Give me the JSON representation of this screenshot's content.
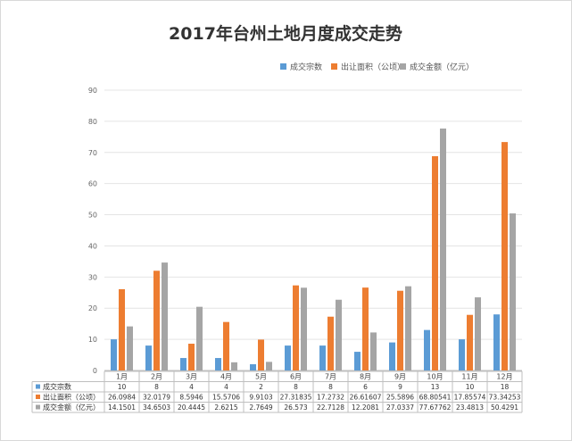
{
  "chart_data": {
    "type": "bar",
    "title": "2017年台州土地月度成交走势",
    "categories": [
      "1月",
      "2月",
      "3月",
      "4月",
      "5月",
      "6月",
      "7月",
      "8月",
      "9月",
      "10月",
      "11月",
      "12月"
    ],
    "series": [
      {
        "name": "成交宗数",
        "color": "#5b9bd5",
        "values": [
          10,
          8,
          4,
          4,
          2,
          8,
          8,
          6,
          9,
          13,
          10,
          18
        ],
        "labels": [
          "10",
          "8",
          "4",
          "4",
          "2",
          "8",
          "8",
          "6",
          "9",
          "13",
          "10",
          "18"
        ]
      },
      {
        "name": "出让面积（公顷）",
        "color": "#ed7d31",
        "values": [
          26.0984,
          32.0179,
          8.5946,
          15.5706,
          9.9103,
          27.31835,
          17.2732,
          26.61607,
          25.5896,
          68.80541,
          17.85574,
          73.34253
        ],
        "labels": [
          "26.0984",
          "32.0179",
          "8.5946",
          "15.5706",
          "9.9103",
          "27.31835",
          "17.2732",
          "26.61607",
          "25.5896",
          "68.80541",
          "17.85574",
          "73.34253"
        ]
      },
      {
        "name": "成交金额（亿元）",
        "color": "#a5a5a5",
        "values": [
          14.1501,
          34.6503,
          20.4445,
          2.6215,
          2.7649,
          26.573,
          22.7128,
          12.2081,
          27.0337,
          77.67762,
          23.4813,
          50.4291
        ],
        "labels": [
          "14.1501",
          "34.6503",
          "20.4445",
          "2.6215",
          "2.7649",
          "26.573",
          "22.7128",
          "12.2081",
          "27.0337",
          "77.67762",
          "23.4813",
          "50.4291"
        ]
      }
    ],
    "ylim": [
      0,
      90
    ],
    "yticks": [
      0,
      10,
      20,
      30,
      40,
      50,
      60,
      70,
      80,
      90
    ],
    "xlabel": "",
    "ylabel": "",
    "grid": true,
    "legend": "top-right"
  }
}
